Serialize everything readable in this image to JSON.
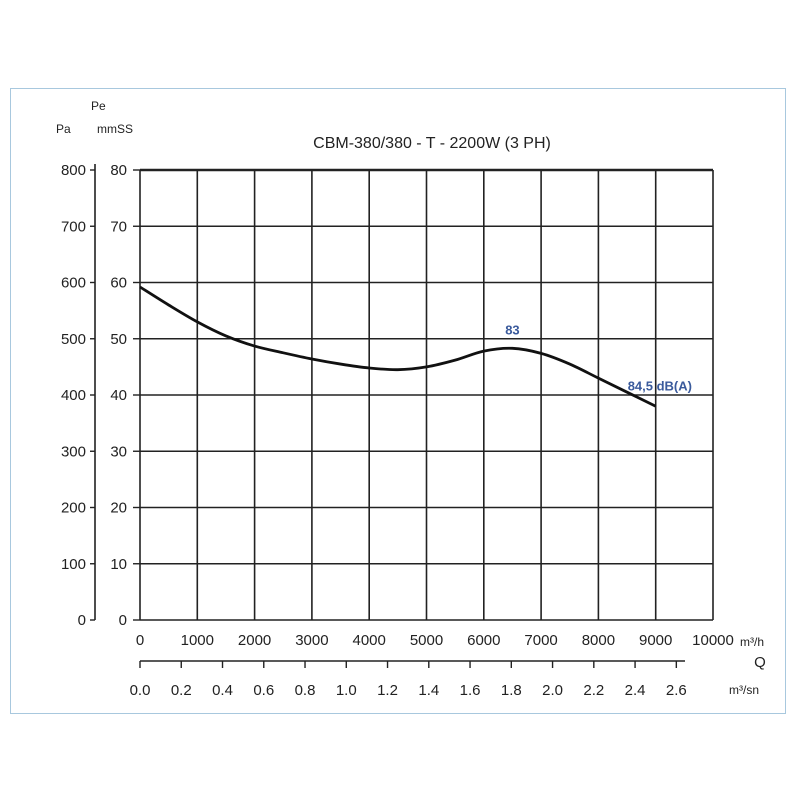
{
  "chart_data": {
    "type": "line",
    "title": "CBM-380/380 - T - 2200W (3 PH)",
    "y_axis_pa": {
      "label": "Pa",
      "range": [
        0,
        800
      ],
      "ticks": [
        "0",
        "100",
        "200",
        "300",
        "400",
        "500",
        "600",
        "700",
        "800"
      ]
    },
    "y_axis_mmss": {
      "label_top": "Pe",
      "label": "mmSS",
      "range": [
        0,
        80
      ],
      "ticks": [
        "0",
        "10",
        "20",
        "30",
        "40",
        "50",
        "60",
        "70",
        "80"
      ]
    },
    "x_axis_m3h": {
      "unit": "m³/h",
      "range": [
        0,
        10000
      ],
      "ticks": [
        "0",
        "1000",
        "2000",
        "3000",
        "4000",
        "5000",
        "6000",
        "7000",
        "8000",
        "9000",
        "10000"
      ]
    },
    "x_axis_m3sn": {
      "label": "Q",
      "unit": "m³/sn",
      "ticks": [
        "0.0",
        "0.2",
        "0.4",
        "0.6",
        "0.8",
        "1.0",
        "1.2",
        "1.4",
        "1.6",
        "1.8",
        "2.0",
        "2.2",
        "2.4",
        "2.6"
      ]
    },
    "grid": true,
    "series": [
      {
        "color": "#111111",
        "x": [
          0,
          500,
          1000,
          1500,
          2000,
          2500,
          3000,
          3500,
          4000,
          4500,
          5000,
          5500,
          6000,
          6500,
          7000,
          7500,
          8000,
          8500,
          9000
        ],
        "y": [
          592,
          560,
          530,
          505,
          487,
          475,
          464,
          455,
          448,
          445,
          450,
          462,
          478,
          483,
          474,
          455,
          430,
          405,
          380
        ]
      }
    ],
    "annotations": [
      {
        "text": "83",
        "x": 6500,
        "y": 483
      },
      {
        "text": "84,5 dB(A)",
        "x": 9000,
        "y": 380
      }
    ]
  }
}
